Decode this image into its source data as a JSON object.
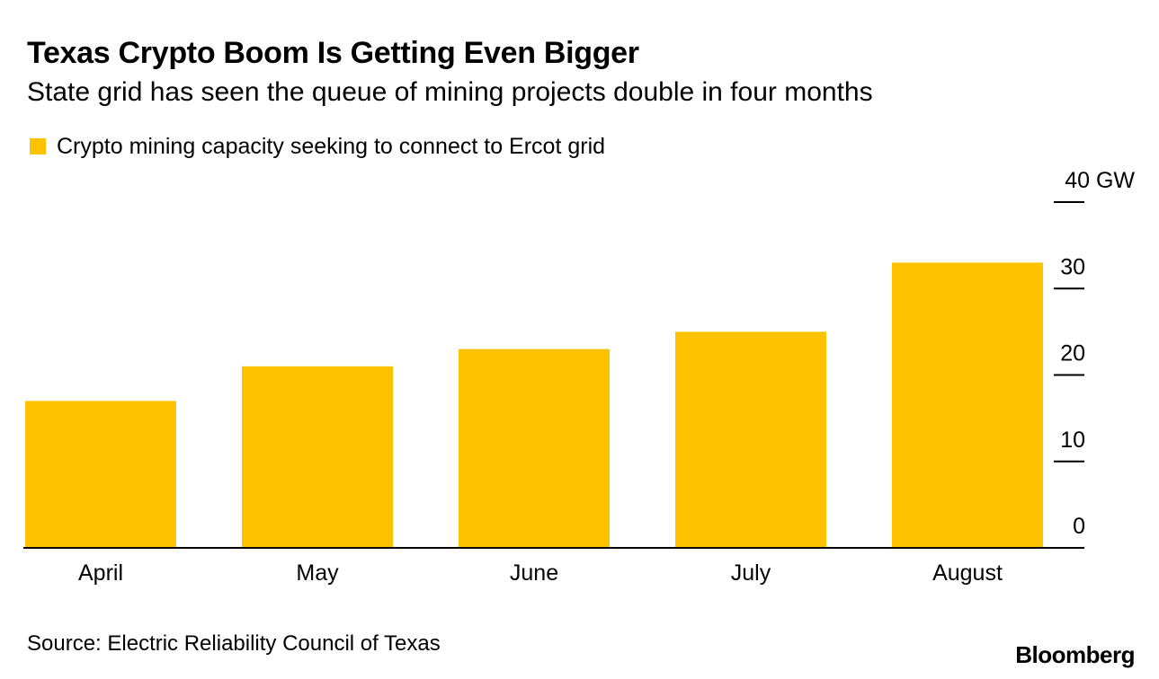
{
  "title": "Texas Crypto Boom Is Getting Even Bigger",
  "subtitle": "State grid has seen the queue of mining projects double in four months",
  "legend": {
    "label": "Crypto mining capacity seeking to connect to Ercot grid",
    "color": "#FFC200"
  },
  "source": "Source: Electric Reliability Council of Texas",
  "brand": "Bloomberg",
  "colors": {
    "bar": "#FFC200",
    "axis": "#000000",
    "text": "#000000",
    "background": "#FFFFFF"
  },
  "chart_data": {
    "type": "bar",
    "categories": [
      "April",
      "May",
      "June",
      "July",
      "August"
    ],
    "series": [
      {
        "name": "Crypto mining capacity seeking to connect to Ercot grid",
        "values": [
          17,
          21,
          23,
          25,
          33
        ]
      }
    ],
    "title": "Texas Crypto Boom Is Getting Even Bigger",
    "subtitle": "State grid has seen the queue of mining projects double in four months",
    "xlabel": "",
    "ylabel": "",
    "y_unit": "GW",
    "ylim": [
      0,
      40
    ],
    "yticks": [
      0,
      10,
      20,
      30,
      40
    ],
    "ytick_labels": [
      "0",
      "10",
      "20",
      "30",
      "40 GW"
    ],
    "yaxis_position": "right",
    "grid": false,
    "legend_position": "top-left"
  }
}
